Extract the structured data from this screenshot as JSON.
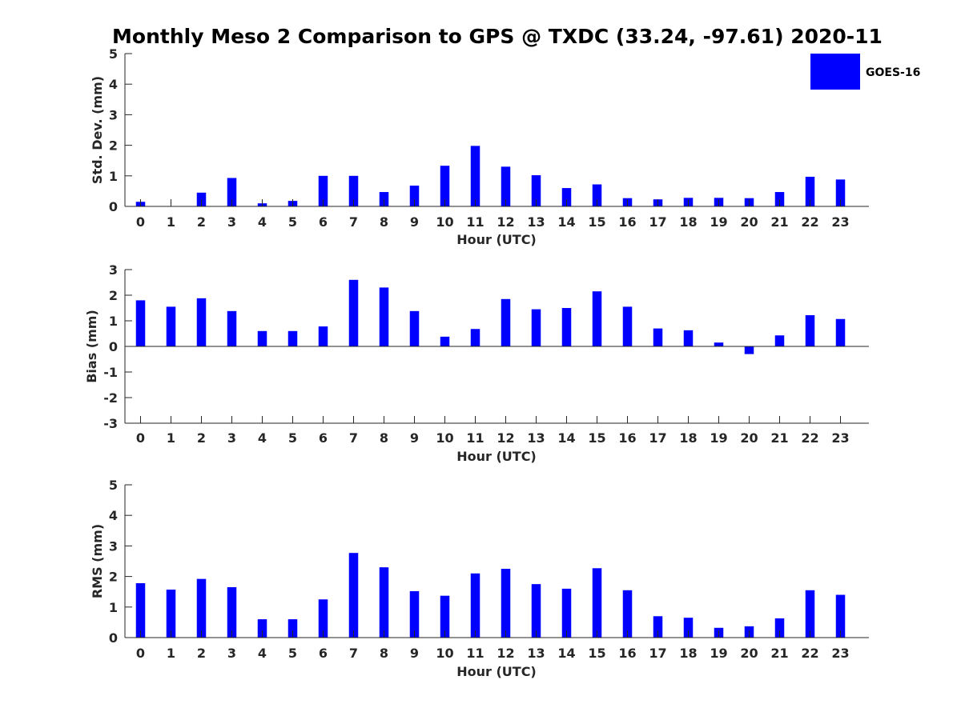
{
  "figure": {
    "title": "Monthly Meso 2 Comparison to GPS @ TXDC (33.24, -97.61) 2020-11",
    "legend": {
      "label": "GOES-16",
      "color": "#0000ff"
    }
  },
  "chart_data": [
    {
      "type": "bar",
      "title": "Monthly Meso 2 Comparison to GPS @ TXDC (33.24, -97.61) 2020-11",
      "xlabel": "Hour (UTC)",
      "ylabel": "Std. Dev. (mm)",
      "ylim": [
        0,
        5
      ],
      "yticks": [
        "0",
        "1",
        "2",
        "3",
        "4",
        "5"
      ],
      "categories": [
        "0",
        "1",
        "2",
        "3",
        "4",
        "5",
        "6",
        "7",
        "8",
        "9",
        "10",
        "11",
        "12",
        "13",
        "14",
        "15",
        "16",
        "17",
        "18",
        "19",
        "20",
        "21",
        "22",
        "23"
      ],
      "series": [
        {
          "name": "GOES-16",
          "color": "#0000ff",
          "values": [
            0.15,
            0,
            0.45,
            0.93,
            0.1,
            0.18,
            1.0,
            1.0,
            0.47,
            0.68,
            1.33,
            1.98,
            1.3,
            1.02,
            0.6,
            0.72,
            0.27,
            0.23,
            0.28,
            0.28,
            0.27,
            0.47,
            0.97,
            0.88
          ]
        }
      ],
      "legend": "top-right"
    },
    {
      "type": "bar",
      "xlabel": "Hour (UTC)",
      "ylabel": "Bias (mm)",
      "ylim": [
        -3,
        3
      ],
      "yticks": [
        "-3",
        "-2",
        "-1",
        "0",
        "1",
        "2",
        "3"
      ],
      "categories": [
        "0",
        "1",
        "2",
        "3",
        "4",
        "5",
        "6",
        "7",
        "8",
        "9",
        "10",
        "11",
        "12",
        "13",
        "14",
        "15",
        "16",
        "17",
        "18",
        "19",
        "20",
        "21",
        "22",
        "23"
      ],
      "series": [
        {
          "name": "GOES-16",
          "color": "#0000ff",
          "values": [
            1.8,
            1.55,
            1.88,
            1.38,
            0.6,
            0.6,
            0.78,
            2.6,
            2.3,
            1.38,
            0.38,
            0.68,
            1.85,
            1.45,
            1.5,
            2.15,
            1.55,
            0.7,
            0.63,
            0.15,
            -0.3,
            0.43,
            1.22,
            1.07
          ]
        }
      ]
    },
    {
      "type": "bar",
      "xlabel": "Hour (UTC)",
      "ylabel": "RMS (mm)",
      "ylim": [
        0,
        5
      ],
      "yticks": [
        "0",
        "1",
        "2",
        "3",
        "4",
        "5"
      ],
      "categories": [
        "0",
        "1",
        "2",
        "3",
        "4",
        "5",
        "6",
        "7",
        "8",
        "9",
        "10",
        "11",
        "12",
        "13",
        "14",
        "15",
        "16",
        "17",
        "18",
        "19",
        "20",
        "21",
        "22",
        "23"
      ],
      "series": [
        {
          "name": "GOES-16",
          "color": "#0000ff",
          "values": [
            1.78,
            1.57,
            1.92,
            1.65,
            0.6,
            0.6,
            1.25,
            2.77,
            2.3,
            1.52,
            1.37,
            2.1,
            2.25,
            1.75,
            1.6,
            2.27,
            1.55,
            0.7,
            0.65,
            0.32,
            0.37,
            0.63,
            1.55,
            1.4
          ]
        }
      ]
    }
  ]
}
